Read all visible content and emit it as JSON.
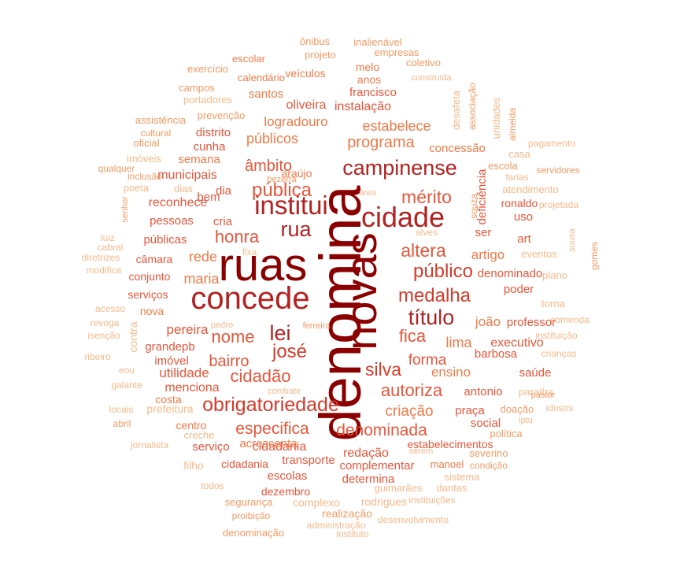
{
  "palette": {
    "c0": "#8B0000",
    "c1": "#B22222",
    "c2": "#D63A2A",
    "c3": "#E8553A",
    "c4": "#F07A48",
    "c5": "#F49A62",
    "c6": "#F7B98A"
  },
  "words": [
    {
      "t": "denomina",
      "c": "c0"
    },
    {
      "t": "ruas",
      "c": "c0"
    },
    {
      "t": "novas",
      "c": "c0"
    },
    {
      "t": "concede",
      "c": "c1"
    },
    {
      "t": "cidade",
      "c": "c1"
    },
    {
      "t": "institui",
      "c": "c1"
    },
    {
      "t": "rua",
      "c": "c1"
    },
    {
      "t": "campinense",
      "c": "c1"
    },
    {
      "t": "lei",
      "c": "c1"
    },
    {
      "t": "título",
      "c": "c1"
    },
    {
      "t": "medalha",
      "c": "c2"
    },
    {
      "t": "público",
      "c": "c2"
    },
    {
      "t": "josé",
      "c": "c2"
    },
    {
      "t": "obrigatoriedade",
      "c": "c2"
    },
    {
      "t": "silva",
      "c": "c2"
    },
    {
      "t": "pública",
      "c": "c3"
    },
    {
      "t": "altera",
      "c": "c3"
    },
    {
      "t": "mérito",
      "c": "c3"
    },
    {
      "t": "honra",
      "c": "c3"
    },
    {
      "t": "nome",
      "c": "c3"
    },
    {
      "t": "fica",
      "c": "c3"
    },
    {
      "t": "cidadão",
      "c": "c3"
    },
    {
      "t": "autoriza",
      "c": "c3"
    },
    {
      "t": "bairro",
      "c": "c3"
    },
    {
      "t": "especifica",
      "c": "c3"
    },
    {
      "t": "denominada",
      "c": "c3"
    },
    {
      "t": "forma",
      "c": "c3"
    },
    {
      "t": "âmbito",
      "c": "c3"
    },
    {
      "t": "programa",
      "c": "c4"
    },
    {
      "t": "criação",
      "c": "c4"
    },
    {
      "t": "maria",
      "c": "c4"
    },
    {
      "t": "rede",
      "c": "c4"
    },
    {
      "t": "lima",
      "c": "c4"
    },
    {
      "t": "públicos",
      "c": "c4"
    },
    {
      "t": "estabelece",
      "c": "c4"
    },
    {
      "t": "logradouro",
      "c": "c4"
    },
    {
      "t": "artigo",
      "c": "c4"
    },
    {
      "t": "ensino",
      "c": "c4"
    },
    {
      "t": "joão",
      "c": "c4"
    },
    {
      "t": "executivo",
      "c": "c3"
    },
    {
      "t": "cidadania",
      "c": "c3"
    },
    {
      "t": "pereira",
      "c": "c3"
    },
    {
      "t": "utilidade",
      "c": "c3"
    },
    {
      "t": "menciona",
      "c": "c3"
    },
    {
      "t": "redação",
      "c": "c3"
    },
    {
      "t": "instalação",
      "c": "c3"
    },
    {
      "t": "oliveira",
      "c": "c3"
    },
    {
      "t": "francisco",
      "c": "c3"
    },
    {
      "t": "municipais",
      "c": "c3"
    },
    {
      "t": "reconhece",
      "c": "c3"
    },
    {
      "t": "pessoas",
      "c": "c3"
    },
    {
      "t": "públicas",
      "c": "c3"
    },
    {
      "t": "câmara",
      "c": "c3"
    },
    {
      "t": "conjunto",
      "c": "c3"
    },
    {
      "t": "serviços",
      "c": "c3"
    },
    {
      "t": "grandepb",
      "c": "c3"
    },
    {
      "t": "imóvel",
      "c": "c3"
    },
    {
      "t": "antonio",
      "c": "c3"
    },
    {
      "t": "praça",
      "c": "c3"
    },
    {
      "t": "social",
      "c": "c3"
    },
    {
      "t": "barbosa",
      "c": "c3"
    },
    {
      "t": "saúde",
      "c": "c3"
    },
    {
      "t": "denominado",
      "c": "c3"
    },
    {
      "t": "poder",
      "c": "c3"
    },
    {
      "t": "professor",
      "c": "c3"
    },
    {
      "t": "serviço",
      "c": "c3"
    },
    {
      "t": "transporte",
      "c": "c3"
    },
    {
      "t": "escolas",
      "c": "c3"
    },
    {
      "t": "complementar",
      "c": "c3"
    },
    {
      "t": "determina",
      "c": "c3"
    },
    {
      "t": "dezembro",
      "c": "c3"
    },
    {
      "t": "estabelecimentos",
      "c": "c3"
    },
    {
      "t": "bem",
      "c": "c3"
    },
    {
      "t": "cria",
      "c": "c3"
    },
    {
      "t": "dia",
      "c": "c3"
    },
    {
      "t": "ser",
      "c": "c3"
    },
    {
      "t": "art",
      "c": "c3"
    },
    {
      "t": "uso",
      "c": "c3"
    },
    {
      "t": "ronaldo",
      "c": "c3"
    },
    {
      "t": "deficiência",
      "c": "c3"
    },
    {
      "t": "distrito",
      "c": "c3"
    },
    {
      "t": "cunha",
      "c": "c3"
    },
    {
      "t": "semana",
      "c": "c4"
    },
    {
      "t": "concessão",
      "c": "c4"
    },
    {
      "t": "araújo",
      "c": "c4"
    },
    {
      "t": "santos",
      "c": "c4"
    },
    {
      "t": "nova",
      "c": "c4"
    },
    {
      "t": "costa",
      "c": "c4"
    },
    {
      "t": "centro",
      "c": "c4"
    },
    {
      "t": "acrescenta",
      "c": "c4"
    },
    {
      "t": "manoel",
      "c": "c4"
    },
    {
      "t": "cidadania",
      "c": "c3"
    },
    {
      "t": "melo",
      "c": "c4"
    },
    {
      "t": "anos",
      "c": "c4"
    },
    {
      "t": "veículos",
      "c": "c4"
    },
    {
      "t": "calendário",
      "c": "c4"
    },
    {
      "t": "escolar",
      "c": "c4"
    },
    {
      "t": "projeto",
      "c": "c5"
    },
    {
      "t": "ônibus",
      "c": "c5"
    },
    {
      "t": "inalienável",
      "c": "c5"
    },
    {
      "t": "empresas",
      "c": "c5"
    },
    {
      "t": "coletivo",
      "c": "c5"
    },
    {
      "t": "exercício",
      "c": "c5"
    },
    {
      "t": "campos",
      "c": "c5"
    },
    {
      "t": "portadores",
      "c": "c6"
    },
    {
      "t": "assistência",
      "c": "c5"
    },
    {
      "t": "prevenção",
      "c": "c5"
    },
    {
      "t": "cultural",
      "c": "c5"
    },
    {
      "t": "oficial",
      "c": "c5"
    },
    {
      "t": "imóveis",
      "c": "c6"
    },
    {
      "t": "qualquer",
      "c": "c5"
    },
    {
      "t": "inclusão",
      "c": "c5"
    },
    {
      "t": "poeta",
      "c": "c6"
    },
    {
      "t": "dias",
      "c": "c6"
    },
    {
      "t": "bezerra",
      "c": "c5"
    },
    {
      "t": "senhor",
      "c": "c5"
    },
    {
      "t": "luiz",
      "c": "c6"
    },
    {
      "t": "cabral",
      "c": "c6"
    },
    {
      "t": "diretrizes",
      "c": "c6"
    },
    {
      "t": "modifica",
      "c": "c6"
    },
    {
      "t": "acesso",
      "c": "c6"
    },
    {
      "t": "revoga",
      "c": "c6"
    },
    {
      "t": "isenção",
      "c": "c6"
    },
    {
      "t": "contra",
      "c": "c6"
    },
    {
      "t": "pedro",
      "c": "c6"
    },
    {
      "t": "ferreira",
      "c": "c5"
    },
    {
      "t": "ribeiro",
      "c": "c6"
    },
    {
      "t": "eou",
      "c": "c6"
    },
    {
      "t": "galante",
      "c": "c6"
    },
    {
      "t": "locais",
      "c": "c6"
    },
    {
      "t": "prefeitura",
      "c": "c6"
    },
    {
      "t": "combate",
      "c": "c6"
    },
    {
      "t": "abril",
      "c": "c5"
    },
    {
      "t": "creche",
      "c": "c6"
    },
    {
      "t": "jornalista",
      "c": "c6"
    },
    {
      "t": "filho",
      "c": "c6"
    },
    {
      "t": "todos",
      "c": "c6"
    },
    {
      "t": "segurança",
      "c": "c5"
    },
    {
      "t": "complexo",
      "c": "c6"
    },
    {
      "t": "rodrigues",
      "c": "c6"
    },
    {
      "t": "proibição",
      "c": "c5"
    },
    {
      "t": "realização",
      "c": "c5"
    },
    {
      "t": "administração",
      "c": "c6"
    },
    {
      "t": "denominação",
      "c": "c5"
    },
    {
      "t": "instituto",
      "c": "c6"
    },
    {
      "t": "desenvolvimento",
      "c": "c6"
    },
    {
      "t": "instituições",
      "c": "c6"
    },
    {
      "t": "guimarães",
      "c": "c6"
    },
    {
      "t": "dantas",
      "c": "c6"
    },
    {
      "t": "sistema",
      "c": "c6"
    },
    {
      "t": "condição",
      "c": "c5"
    },
    {
      "t": "severino",
      "c": "c5"
    },
    {
      "t": "serem",
      "c": "c6"
    },
    {
      "t": "política",
      "c": "c5"
    },
    {
      "t": "iptu",
      "c": "c6"
    },
    {
      "t": "doação",
      "c": "c5"
    },
    {
      "t": "idosos",
      "c": "c6"
    },
    {
      "t": "pastor",
      "c": "c5"
    },
    {
      "t": "paraíba",
      "c": "c6"
    },
    {
      "t": "crianças",
      "c": "c6"
    },
    {
      "t": "instituição",
      "c": "c6"
    },
    {
      "t": "comenda",
      "c": "c6"
    },
    {
      "t": "torna",
      "c": "c6"
    },
    {
      "t": "plano",
      "c": "c6"
    },
    {
      "t": "eventos",
      "c": "c6"
    },
    {
      "t": "sousa",
      "c": "c6"
    },
    {
      "t": "gomes",
      "c": "c5"
    },
    {
      "t": "projetada",
      "c": "c6"
    },
    {
      "t": "atendimento",
      "c": "c6"
    },
    {
      "t": "farias",
      "c": "c6"
    },
    {
      "t": "servidores",
      "c": "c5"
    },
    {
      "t": "casa",
      "c": "c6"
    },
    {
      "t": "pagamento",
      "c": "c6"
    },
    {
      "t": "escola",
      "c": "c5"
    },
    {
      "t": "unidades",
      "c": "c6"
    },
    {
      "t": "almeida",
      "c": "c5"
    },
    {
      "t": "associação",
      "c": "c5"
    },
    {
      "t": "desafeta",
      "c": "c6"
    },
    {
      "t": "construída",
      "c": "c6"
    },
    {
      "t": "souza",
      "c": "c5"
    },
    {
      "t": "área",
      "c": "c6"
    },
    {
      "t": "alves",
      "c": "c6"
    },
    {
      "t": "fixa",
      "c": "c6"
    },
    {
      "t": "educação",
      "c": "c6"
    },
    {
      "t": "inciso",
      "c": "c6"
    }
  ]
}
